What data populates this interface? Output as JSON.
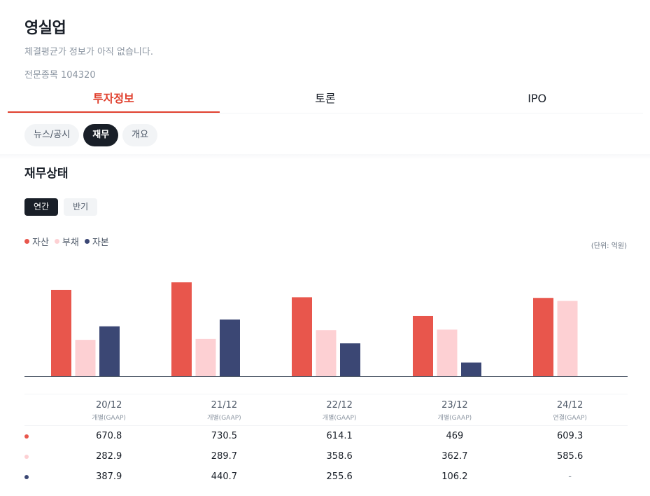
{
  "header": {
    "stock_name": "영실업",
    "price_note": "체결평균가 정보가 아직 없습니다.",
    "market_info": "전문종목 104320"
  },
  "tabs": [
    {
      "label": "투자정보",
      "active": true
    },
    {
      "label": "토론",
      "active": false
    },
    {
      "label": "IPO",
      "active": false
    }
  ],
  "subtabs": [
    {
      "label": "뉴스/공시",
      "active": false
    },
    {
      "label": "재무",
      "active": true
    },
    {
      "label": "개요",
      "active": false
    }
  ],
  "section_title": "재무상태",
  "period_toggle": [
    {
      "label": "연간",
      "active": true
    },
    {
      "label": "반기",
      "active": false
    }
  ],
  "unit_label": "(단위: 억원)",
  "colors": {
    "assets": "#e8564c",
    "liabilities": "#fdd0d3",
    "equity": "#3b4774",
    "accent": "#e0412f"
  },
  "chart_data": {
    "type": "bar",
    "categories": [
      "20/12",
      "21/12",
      "22/12",
      "23/12",
      "24/12"
    ],
    "bases": [
      "개별(GAAP)",
      "개별(GAAP)",
      "개별(GAAP)",
      "개별(GAAP)",
      "연결(GAAP)"
    ],
    "series": [
      {
        "name": "자산",
        "values": [
          670.8,
          730.5,
          614.1,
          469,
          609.3
        ]
      },
      {
        "name": "부채",
        "values": [
          282.9,
          289.7,
          358.6,
          362.7,
          585.6
        ]
      },
      {
        "name": "자본",
        "values": [
          387.9,
          440.7,
          255.6,
          106.2,
          null
        ]
      }
    ],
    "display_values": [
      [
        "670.8",
        "730.5",
        "614.1",
        "469",
        "609.3"
      ],
      [
        "282.9",
        "289.7",
        "358.6",
        "362.7",
        "585.6"
      ],
      [
        "387.9",
        "440.7",
        "255.6",
        "106.2",
        "-"
      ]
    ],
    "legend": "top-left",
    "grid": false
  }
}
